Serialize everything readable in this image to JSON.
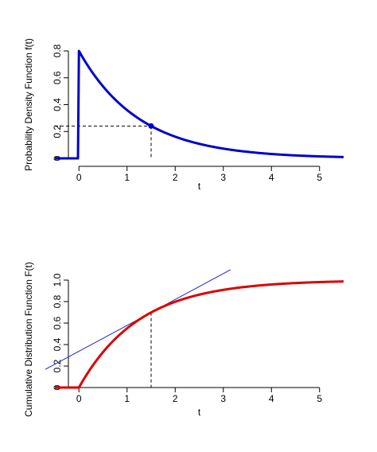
{
  "chart_data": [
    {
      "type": "line",
      "xlabel": "t",
      "ylabel": "Probability Density Function f(t)",
      "xlim": [
        -0.5,
        5.5
      ],
      "ylim": [
        0,
        0.8
      ],
      "x_ticks": [
        0,
        1,
        2,
        3,
        4,
        5
      ],
      "y_ticks": [
        0.0,
        0.2,
        0.4,
        0.6,
        0.8
      ],
      "x_tick_labels": [
        "0",
        "1",
        "2",
        "3",
        "4",
        "5"
      ],
      "y_tick_labels": [
        "0",
        "0.2",
        "0.4",
        "0.6",
        "0.8"
      ],
      "series": [
        {
          "function": "0.8*exp(-0.8*t) for t>=0, 0 for t<0",
          "x_range": [
            -0.5,
            5.5
          ],
          "color": "#0000cc"
        }
      ],
      "marked_point": {
        "x": 1.5,
        "y": 0.241,
        "color": "#0000cc"
      },
      "reference_lines": [
        {
          "style": "dashed",
          "from": [
            -0.5,
            0.241
          ],
          "to": [
            1.5,
            0.241
          ]
        },
        {
          "style": "dashed",
          "from": [
            1.5,
            0.241
          ],
          "to": [
            1.5,
            0
          ]
        }
      ],
      "grid": false,
      "legend": "none"
    },
    {
      "type": "line",
      "xlabel": "t",
      "ylabel": "Cumulative Distribution Function F(t)",
      "xlim": [
        -0.5,
        5.5
      ],
      "ylim": [
        0,
        1.0
      ],
      "x_ticks": [
        0,
        1,
        2,
        3,
        4,
        5
      ],
      "y_ticks": [
        0.0,
        0.2,
        0.4,
        0.6,
        0.8,
        1.0
      ],
      "x_tick_labels": [
        "0",
        "1",
        "2",
        "3",
        "4",
        "5"
      ],
      "y_tick_labels": [
        "0",
        "0.2",
        "0.4",
        "0.6",
        "0.8",
        "1.0"
      ],
      "series": [
        {
          "function": "1-exp(-0.8*t) for t>=0, 0 for t<0",
          "x_range": [
            -0.5,
            5.5
          ],
          "color": "#dd0000"
        }
      ],
      "tangent_line": {
        "at_x": 1.5,
        "y_at_x": 0.699,
        "slope": 0.241,
        "x_range": [
          -0.7,
          3.15
        ],
        "color": "#2222cc"
      },
      "reference_lines": [
        {
          "style": "dashed",
          "from": [
            1.5,
            0.699
          ],
          "to": [
            1.5,
            0
          ]
        }
      ],
      "grid": false,
      "legend": "none"
    }
  ]
}
